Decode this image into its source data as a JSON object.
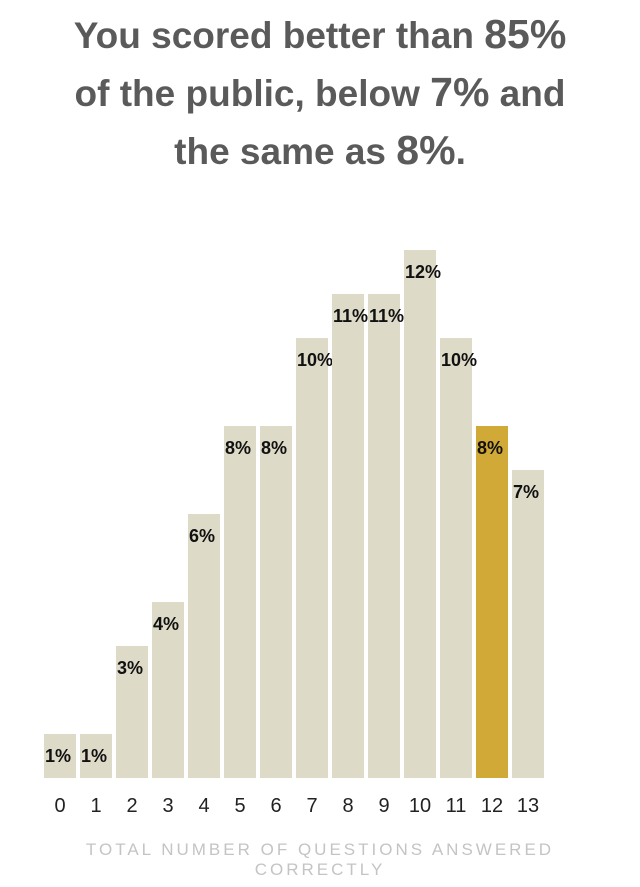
{
  "headline": {
    "line1_a": "You scored better than ",
    "line1_b": "85%",
    "line2_a": "of the public, below ",
    "line2_b": "7%",
    "line2_c": " and",
    "line3_a": "the same as ",
    "line3_b": "8%",
    "line3_c": "."
  },
  "chart_data": {
    "type": "bar",
    "categories": [
      "0",
      "1",
      "2",
      "3",
      "4",
      "5",
      "6",
      "7",
      "8",
      "9",
      "10",
      "11",
      "12",
      "13"
    ],
    "values": [
      1,
      1,
      3,
      4,
      6,
      8,
      8,
      10,
      11,
      11,
      12,
      10,
      8,
      7
    ],
    "labels": [
      "1%",
      "1%",
      "3%",
      "4%",
      "6%",
      "8%",
      "8%",
      "10%",
      "11%",
      "11%",
      "12%",
      "10%",
      "8%",
      "7%"
    ],
    "highlight_index": 12,
    "xlabel": "TOTAL NUMBER OF QUESTIONS ANSWERED CORRECTLY",
    "ylabel": "",
    "ylim": [
      0,
      12
    ],
    "grid": false,
    "colors": {
      "bar": "#dddac8",
      "highlight": "#d1a936",
      "label": "#111111",
      "tick": "#222222"
    }
  }
}
